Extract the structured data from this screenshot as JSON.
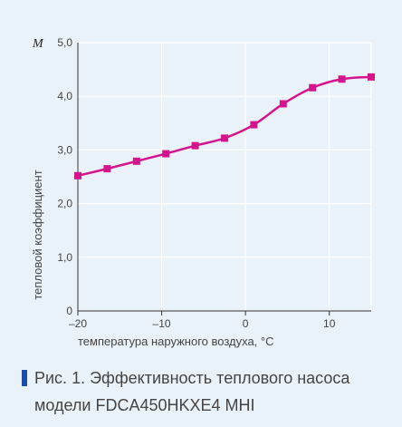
{
  "chart_data": {
    "type": "line",
    "ylabel": "тепловой коэффициент",
    "xlabel": "температура наружного воздуха, °C",
    "y_symbol": "M",
    "xlim": [
      -20,
      15
    ],
    "ylim": [
      0,
      5
    ],
    "x_ticks": [
      -20,
      -10,
      0,
      10
    ],
    "x_tick_labels": [
      "–20",
      "–10",
      "0",
      "10"
    ],
    "y_ticks": [
      0,
      1,
      2,
      3,
      4,
      5
    ],
    "y_tick_labels": [
      "0",
      "1,0",
      "2,0",
      "3,0",
      "4,0",
      "5,0"
    ],
    "grid": true,
    "series": [
      {
        "color": "#d4148c",
        "x": [
          -20,
          -16.5,
          -13,
          -9.5,
          -6,
          -2.5,
          1,
          4.5,
          8,
          11.5,
          15
        ],
        "y": [
          2.52,
          2.65,
          2.79,
          2.93,
          3.08,
          3.22,
          3.47,
          3.86,
          4.16,
          4.32,
          4.36
        ]
      }
    ]
  },
  "caption": "Рис. 1. Эффективность теплового насоса модели FDCA450HKXE4 MHI",
  "colors": {
    "background": "#e9f2f9",
    "grid": "#ffffff",
    "line": "#d4148c",
    "caption_marker": "#1a4ea8"
  }
}
